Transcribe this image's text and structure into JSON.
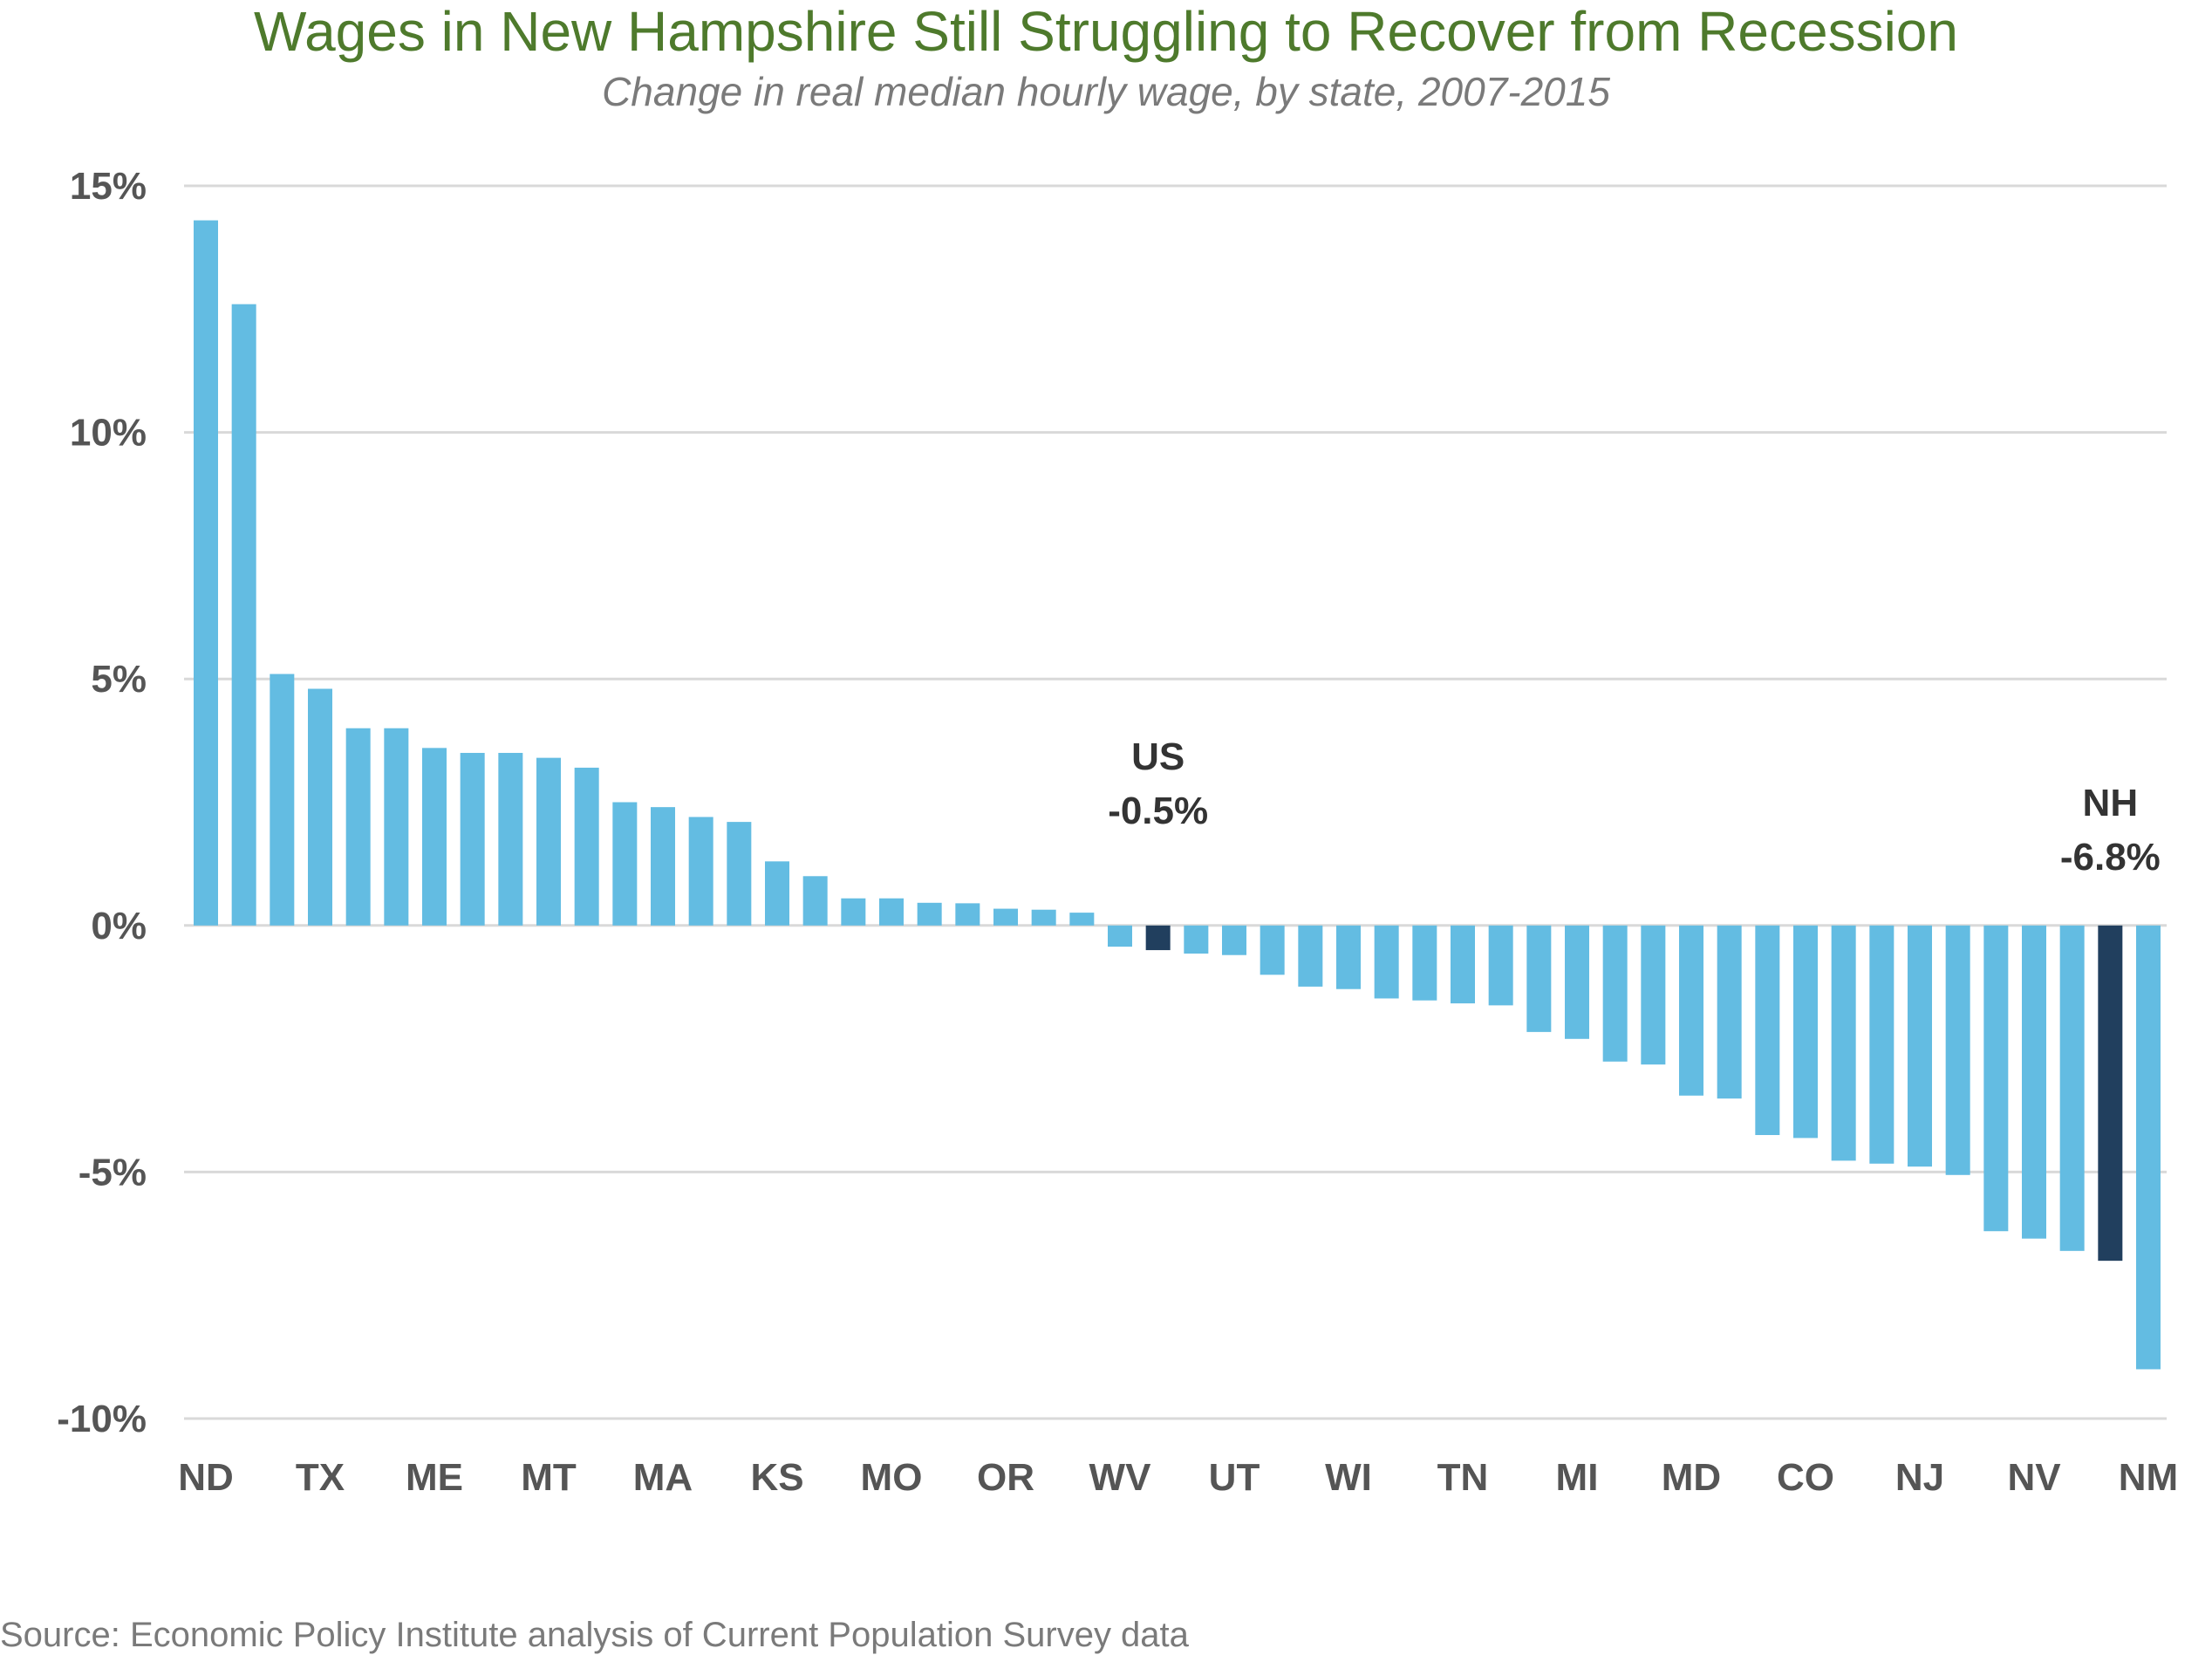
{
  "chart_data": {
    "type": "bar",
    "title": "Wages in New Hampshire Still Struggling to Recover from Recession",
    "subtitle": "Change in real median hourly wage, by state, 2007-2015",
    "source": "Source: Economic Policy Institute analysis of Current Population Survey data",
    "xlabel": "",
    "ylabel": "",
    "ylim": [
      -10,
      15
    ],
    "yticks": [
      15,
      10,
      5,
      0,
      -5,
      -10
    ],
    "ytick_labels": [
      "15%",
      "10%",
      "5%",
      "0%",
      "-5%",
      "-10%"
    ],
    "grid": true,
    "x_tick_labels": [
      {
        "index": 0,
        "label": "ND"
      },
      {
        "index": 3,
        "label": "TX"
      },
      {
        "index": 6,
        "label": "ME"
      },
      {
        "index": 9,
        "label": "MT"
      },
      {
        "index": 12,
        "label": "MA"
      },
      {
        "index": 15,
        "label": "KS"
      },
      {
        "index": 18,
        "label": "MO"
      },
      {
        "index": 21,
        "label": "OR"
      },
      {
        "index": 24,
        "label": "WV"
      },
      {
        "index": 27,
        "label": "UT"
      },
      {
        "index": 30,
        "label": "WI"
      },
      {
        "index": 33,
        "label": "TN"
      },
      {
        "index": 36,
        "label": "MI"
      },
      {
        "index": 39,
        "label": "MD"
      },
      {
        "index": 42,
        "label": "CO"
      },
      {
        "index": 45,
        "label": "NJ"
      },
      {
        "index": 48,
        "label": "NV"
      },
      {
        "index": 51,
        "label": "NM"
      }
    ],
    "values": [
      14.3,
      12.6,
      5.1,
      4.8,
      4.0,
      4.0,
      3.6,
      3.5,
      3.5,
      3.4,
      3.2,
      2.5,
      2.4,
      2.2,
      2.1,
      1.3,
      1.0,
      0.55,
      0.55,
      0.46,
      0.45,
      0.34,
      0.32,
      0.26,
      -0.43,
      -0.5,
      -0.57,
      -0.6,
      -1.0,
      -1.24,
      -1.29,
      -1.48,
      -1.52,
      -1.58,
      -1.62,
      -2.16,
      -2.3,
      -2.76,
      -2.82,
      -3.45,
      -3.51,
      -4.25,
      -4.31,
      -4.77,
      -4.83,
      -4.89,
      -5.06,
      -6.2,
      -6.35,
      -6.6,
      -6.8,
      -9.0
    ],
    "highlights": [
      {
        "index": 25,
        "label": "US",
        "value_label": "-0.5%"
      },
      {
        "index": 50,
        "label": "NH",
        "value_label": "-6.8%"
      }
    ],
    "colors": {
      "bar": "#63bce2",
      "highlight": "#213f5e",
      "grid": "#d9d9d9",
      "title": "#4e7a2c"
    }
  }
}
